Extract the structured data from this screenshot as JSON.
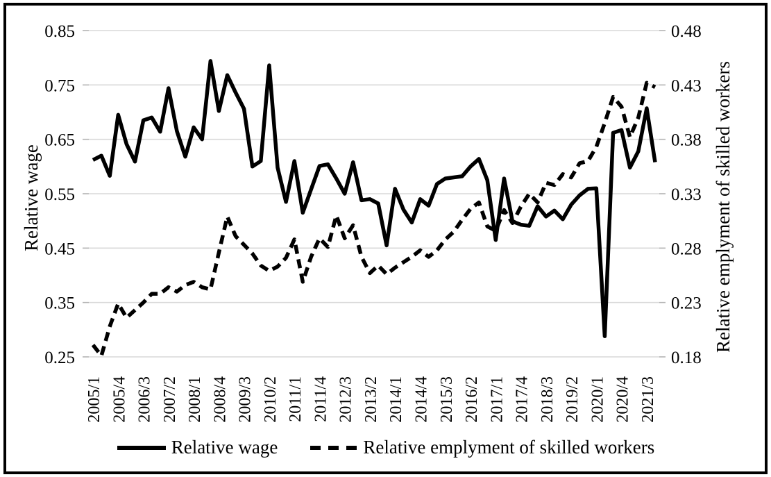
{
  "figure": {
    "background": "#ffffff",
    "border_color": "#000000",
    "line_color": "#000000",
    "gridline_color": "#d9d9d9"
  },
  "chart_data": {
    "type": "line",
    "title": "",
    "grid": true,
    "legend_position": "bottom",
    "x": [
      "2005/1",
      "2005/2",
      "2005/3",
      "2005/4",
      "2006/1",
      "2006/2",
      "2006/3",
      "2006/4",
      "2007/1",
      "2007/2",
      "2007/3",
      "2007/4",
      "2008/1",
      "2008/2",
      "2008/3",
      "2008/4",
      "2009/1",
      "2009/2",
      "2009/3",
      "2009/4",
      "2010/1",
      "2010/2",
      "2010/3",
      "2010/4",
      "2011/1",
      "2011/2",
      "2011/3",
      "2011/4",
      "2012/1",
      "2012/2",
      "2012/3",
      "2012/4",
      "2013/1",
      "2013/2",
      "2013/3",
      "2013/4",
      "2014/1",
      "2014/2",
      "2014/3",
      "2014/4",
      "2015/1",
      "2015/2",
      "2015/3",
      "2015/4",
      "2016/1",
      "2016/2",
      "2016/3",
      "2016/4",
      "2017/1",
      "2017/2",
      "2017/3",
      "2017/4",
      "2018/1",
      "2018/2",
      "2018/3",
      "2018/4",
      "2019/1",
      "2019/2",
      "2019/3",
      "2019/4",
      "2020/1",
      "2020/2",
      "2020/3",
      "2020/4",
      "2021/1",
      "2021/2",
      "2021/3",
      "2021/4"
    ],
    "x_tick_step": 3,
    "x_tick_labels": [
      "2005/1",
      "2005/4",
      "2006/3",
      "2007/2",
      "2008/1",
      "2008/4",
      "2009/3",
      "2010/2",
      "2011/1",
      "2011/4",
      "2012/3",
      "2013/2",
      "2014/1",
      "2014/4",
      "2015/3",
      "2016/2",
      "2017/1",
      "2017/4",
      "2018/3",
      "2019/2",
      "2020/1",
      "2020/4",
      "2021/3"
    ],
    "left_axis": {
      "title": "Relative wage",
      "min": 0.25,
      "max": 0.85,
      "ticks": [
        0.85,
        0.75,
        0.65,
        0.55,
        0.45,
        0.35,
        0.25
      ],
      "tick_labels": [
        "0.85",
        "0.75",
        "0.65",
        "0.55",
        "0.45",
        "0.35",
        "0.25"
      ]
    },
    "right_axis": {
      "title": "Relative emplyment of skilled workers",
      "min": 0.18,
      "max": 0.48,
      "ticks": [
        0.48,
        0.43,
        0.38,
        0.33,
        0.28,
        0.23,
        0.18
      ],
      "tick_labels": [
        "0.48",
        "0.43",
        "0.38",
        "0.33",
        "0.28",
        "0.23",
        "0.18"
      ]
    },
    "series": [
      {
        "name": "Relative wage",
        "axis": "left",
        "style": "solid",
        "color": "#000000",
        "values": [
          0.612,
          0.62,
          0.583,
          0.695,
          0.641,
          0.609,
          0.685,
          0.69,
          0.664,
          0.744,
          0.665,
          0.618,
          0.672,
          0.65,
          0.794,
          0.702,
          0.768,
          0.736,
          0.706,
          0.6,
          0.61,
          0.786,
          0.598,
          0.535,
          0.61,
          0.515,
          0.558,
          0.601,
          0.604,
          0.578,
          0.55,
          0.608,
          0.538,
          0.54,
          0.532,
          0.455,
          0.559,
          0.521,
          0.497,
          0.54,
          0.528,
          0.568,
          0.578,
          0.58,
          0.582,
          0.6,
          0.614,
          0.575,
          0.465,
          0.578,
          0.499,
          0.493,
          0.491,
          0.527,
          0.508,
          0.519,
          0.503,
          0.53,
          0.547,
          0.559,
          0.56,
          0.288,
          0.662,
          0.667,
          0.598,
          0.628,
          0.707,
          0.608
        ]
      },
      {
        "name": "Relative emplyment of skilled workers",
        "axis": "right",
        "style": "dashed",
        "color": "#000000",
        "values": [
          0.191,
          0.181,
          0.208,
          0.229,
          0.216,
          0.223,
          0.23,
          0.238,
          0.238,
          0.244,
          0.24,
          0.246,
          0.249,
          0.244,
          0.242,
          0.276,
          0.309,
          0.291,
          0.283,
          0.275,
          0.264,
          0.259,
          0.263,
          0.271,
          0.288,
          0.249,
          0.272,
          0.289,
          0.281,
          0.31,
          0.289,
          0.301,
          0.272,
          0.257,
          0.264,
          0.256,
          0.262,
          0.267,
          0.272,
          0.278,
          0.272,
          0.278,
          0.288,
          0.295,
          0.306,
          0.316,
          0.322,
          0.3,
          0.296,
          0.315,
          0.303,
          0.318,
          0.33,
          0.322,
          0.34,
          0.338,
          0.348,
          0.345,
          0.358,
          0.36,
          0.373,
          0.395,
          0.419,
          0.41,
          0.382,
          0.4,
          0.432,
          0.428
        ]
      }
    ]
  },
  "legend": {
    "items": [
      {
        "label": "Relative wage",
        "style": "solid"
      },
      {
        "label": "Relative emplyment of skilled workers",
        "style": "dashed"
      }
    ]
  }
}
